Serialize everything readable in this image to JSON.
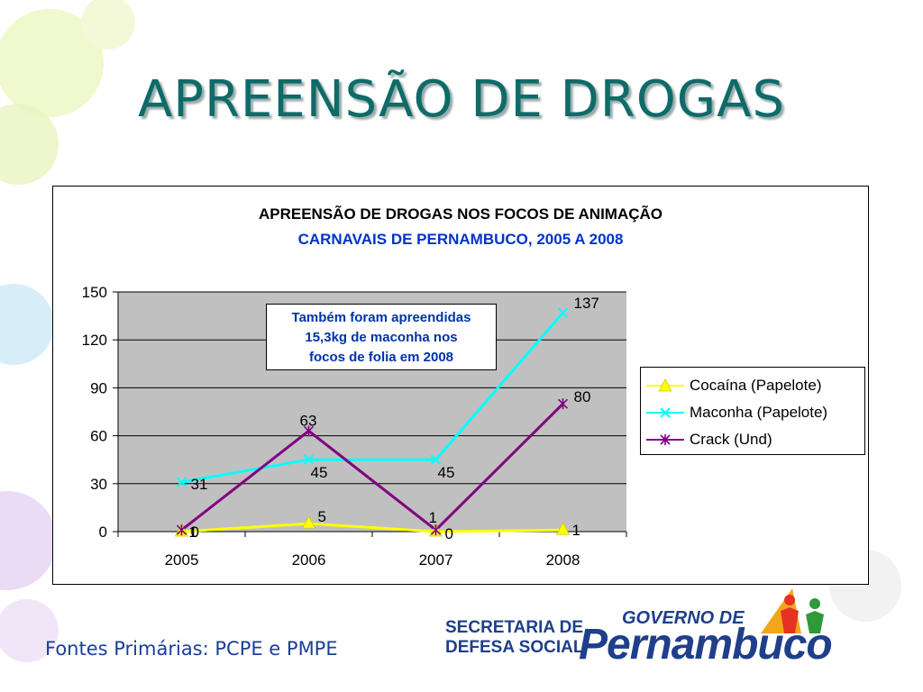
{
  "slide": {
    "title": "APREENSÃO DE DROGAS",
    "footer_source": "Fontes Primárias: PCPE e PMPE"
  },
  "logo": {
    "line1": "SECRETARIA DE",
    "line2": "DEFESA SOCIAL",
    "gov": "GOVERNO DE",
    "state": "Pernambuco"
  },
  "annotation": {
    "lines": [
      "Também foram apreendidas",
      "15,3kg de maconha nos",
      "focos de folia em 2008"
    ]
  },
  "colors": {
    "title": "#0e6b68",
    "plot_bg": "#c0c0c0",
    "cocaina": "#ffff00",
    "maconha": "#00ffff",
    "crack": "#800080"
  },
  "chart_data": {
    "type": "line",
    "title": "APREENSÃO DE DROGAS NOS FOCOS DE ANIMAÇÃO",
    "subtitle": "CARNAVAIS DE PERNAMBUCO, 2005 A 2008",
    "categories": [
      "2005",
      "2006",
      "2007",
      "2008"
    ],
    "series": [
      {
        "name": "Cocaína (Papelote)",
        "values": [
          0,
          5,
          0,
          1
        ],
        "color": "#ffff00",
        "marker": "triangle"
      },
      {
        "name": "Maconha (Papelote)",
        "values": [
          31,
          45,
          45,
          137
        ],
        "color": "#00ffff",
        "marker": "x"
      },
      {
        "name": "Crack (Und)",
        "values": [
          1,
          63,
          1,
          80
        ],
        "color": "#800080",
        "marker": "star"
      }
    ],
    "ylim": [
      0,
      150
    ],
    "yticks": [
      "0",
      "30",
      "60",
      "90",
      "120",
      "150"
    ],
    "grid": true,
    "legend_position": "right"
  }
}
